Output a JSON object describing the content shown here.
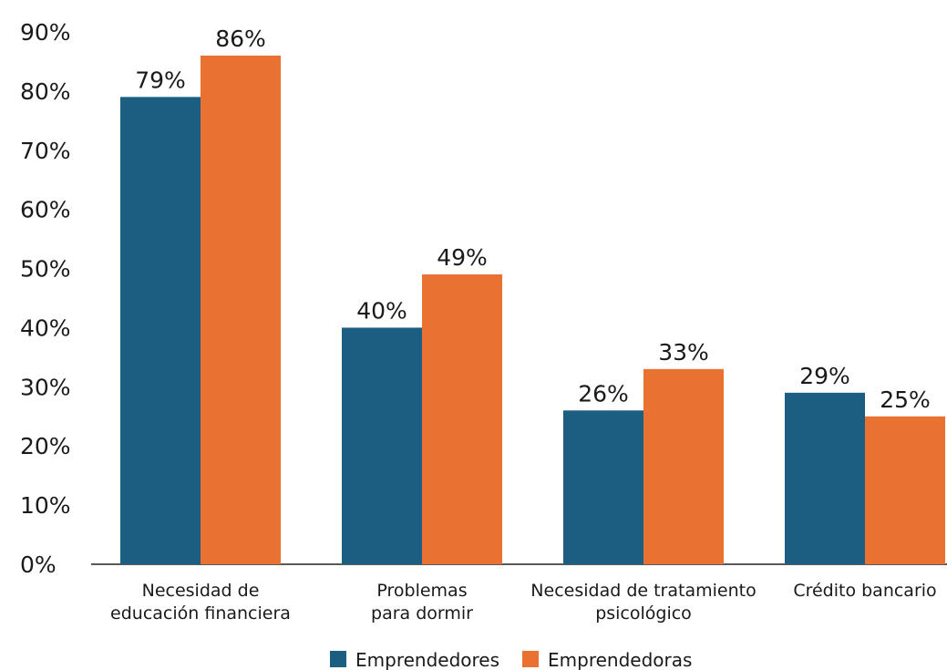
{
  "chart_data": {
    "type": "bar",
    "categories": [
      [
        "Necesidad de",
        "educación financiera"
      ],
      [
        "Problemas",
        "para dormir"
      ],
      [
        "Necesidad de tratamiento",
        "psicológico"
      ],
      [
        "Crédito bancario"
      ]
    ],
    "series": [
      {
        "name": "Emprendedores",
        "values": [
          79,
          40,
          26,
          29
        ],
        "labels": [
          "79%",
          "40%",
          "26%",
          "29%"
        ],
        "color": "#1b5e82"
      },
      {
        "name": "Emprendedoras",
        "values": [
          86,
          49,
          33,
          25
        ],
        "labels": [
          "86%",
          "49%",
          "33%",
          "25%"
        ],
        "color": "#e97132"
      }
    ],
    "ylim": [
      0,
      90
    ],
    "yticks": [
      "0%",
      "10%",
      "20%",
      "30%",
      "40%",
      "50%",
      "60%",
      "70%",
      "80%",
      "90%"
    ],
    "grid": false,
    "legend": "bottom"
  }
}
